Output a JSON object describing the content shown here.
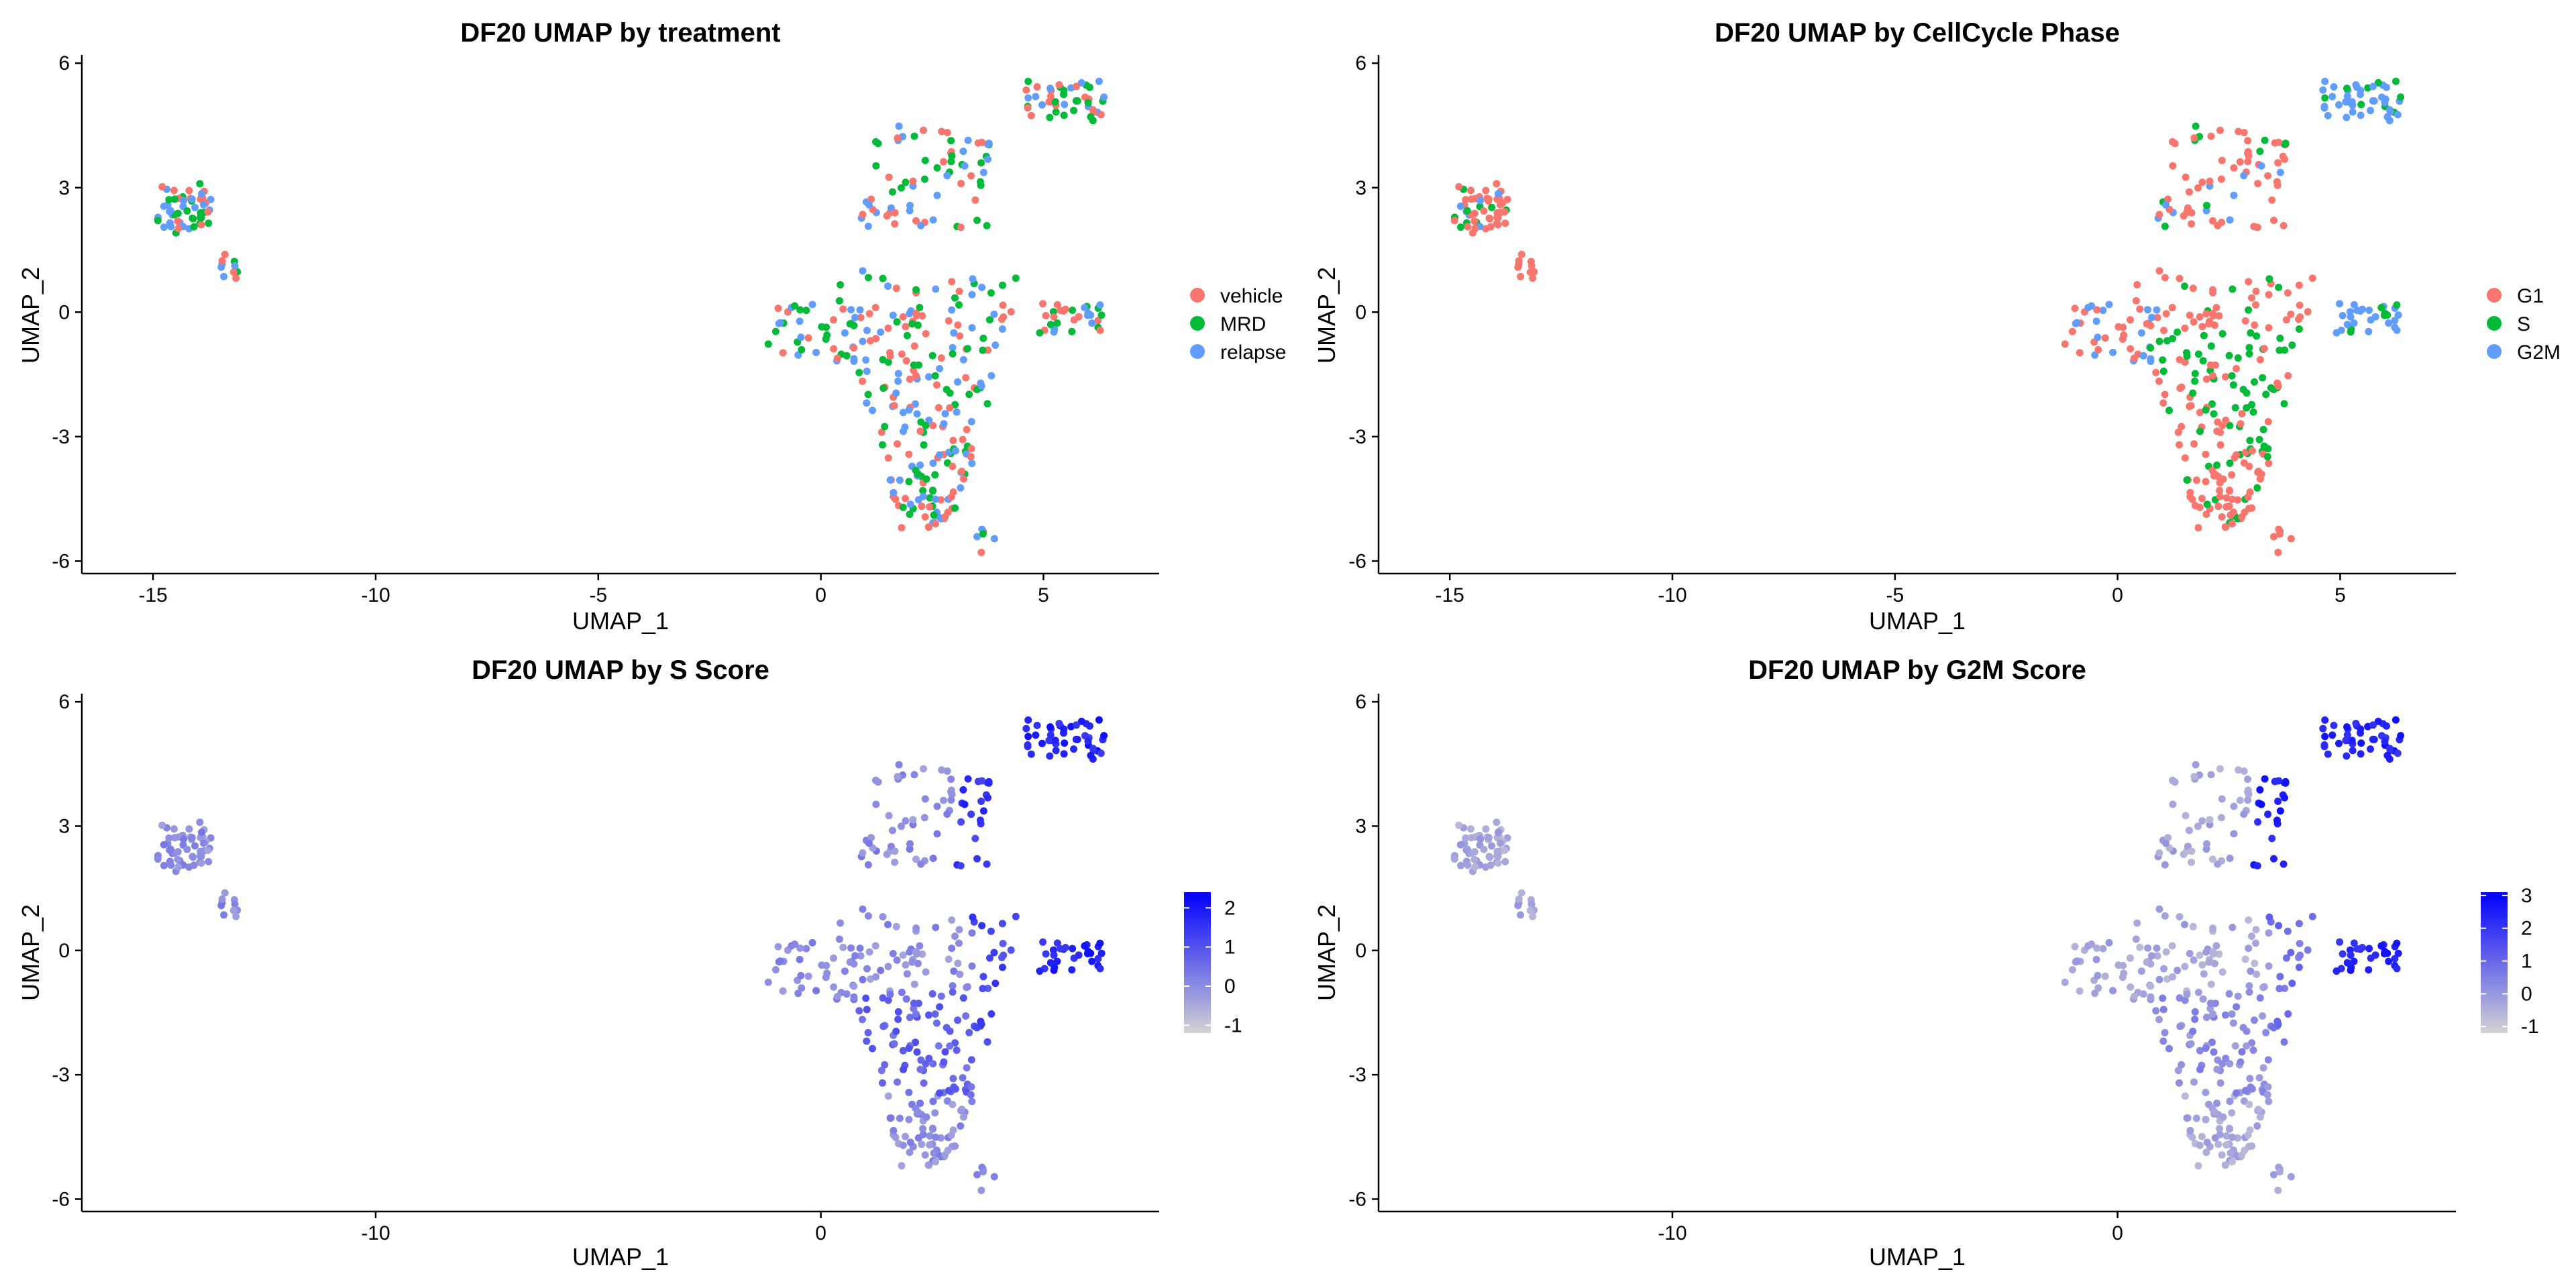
{
  "chart_data": [
    {
      "type": "scatter",
      "panel": "treatment",
      "title": "DF20 UMAP by treatment",
      "xlabel": "UMAP_1",
      "ylabel": "UMAP_2",
      "xlim": [
        -16.6,
        7.6
      ],
      "ylim": [
        -6.3,
        6.1
      ],
      "xticks": [
        -15,
        -10,
        -5,
        0,
        5
      ],
      "yticks": [
        -6,
        -3,
        0,
        3,
        6
      ],
      "legend": {
        "type": "categorical",
        "position": "right",
        "items": [
          {
            "label": "vehicle",
            "color": "#F8766D"
          },
          {
            "label": "MRD",
            "color": "#00BA38"
          },
          {
            "label": "relapse",
            "color": "#619CFF"
          }
        ]
      },
      "clusters": [
        {
          "x": [
            -14.9,
            -13.7
          ],
          "y": [
            1.9,
            3.1
          ]
        },
        {
          "x": [
            -13.6,
            -13.0
          ],
          "y": [
            0.8,
            1.4
          ]
        },
        {
          "x": [
            0.9,
            3.8
          ],
          "y": [
            2.0,
            4.6
          ]
        },
        {
          "x": [
            4.6,
            6.4
          ],
          "y": [
            4.6,
            5.6
          ]
        },
        {
          "x": [
            -1.2,
            0.9
          ],
          "y": [
            -1.2,
            0.2
          ]
        },
        {
          "x": [
            4.9,
            6.4
          ],
          "y": [
            -0.5,
            0.3
          ]
        },
        {
          "x": [
            0.3,
            4.8
          ],
          "y": [
            -5.2,
            1.0
          ]
        },
        {
          "x": [
            3.5,
            3.9
          ],
          "y": [
            -5.8,
            -5.2
          ]
        }
      ]
    },
    {
      "type": "scatter",
      "panel": "cellcycle",
      "title": "DF20 UMAP by CellCycle Phase",
      "xlabel": "UMAP_1",
      "ylabel": "UMAP_2",
      "xlim": [
        -16.6,
        7.6
      ],
      "ylim": [
        -6.3,
        6.1
      ],
      "xticks": [
        -15,
        -10,
        -5,
        0,
        5
      ],
      "yticks": [
        -6,
        -3,
        0,
        3,
        6
      ],
      "legend": {
        "type": "categorical",
        "position": "right",
        "items": [
          {
            "label": "G1",
            "color": "#F8766D"
          },
          {
            "label": "S",
            "color": "#00BA38"
          },
          {
            "label": "G2M",
            "color": "#619CFF"
          }
        ]
      }
    },
    {
      "type": "scatter",
      "panel": "sscore",
      "title": "DF20 UMAP by S Score",
      "xlabel": "UMAP_1",
      "ylabel": "UMAP_2",
      "xlim": [
        -16.6,
        7.6
      ],
      "ylim": [
        -6.3,
        6.1
      ],
      "xticks": [
        -10,
        0
      ],
      "yticks": [
        -6,
        -3,
        0,
        3,
        6
      ],
      "legend": {
        "type": "gradient",
        "position": "right",
        "low": "#D3D3D3",
        "high": "#0000FF",
        "range": [
          -1.2,
          2.4
        ],
        "ticks": [
          -1,
          0,
          1,
          2
        ]
      }
    },
    {
      "type": "scatter",
      "panel": "g2mscore",
      "title": "DF20 UMAP by G2M Score",
      "xlabel": "UMAP_1",
      "ylabel": "UMAP_2",
      "xlim": [
        -16.6,
        7.6
      ],
      "ylim": [
        -6.3,
        6.1
      ],
      "xticks": [
        -10,
        0
      ],
      "yticks": [
        -6,
        -3,
        0,
        3,
        6
      ],
      "legend": {
        "type": "gradient",
        "position": "right",
        "low": "#D3D3D3",
        "high": "#0000FF",
        "range": [
          -1.2,
          3.1
        ],
        "ticks": [
          -1,
          0,
          1,
          2,
          3
        ]
      }
    }
  ]
}
